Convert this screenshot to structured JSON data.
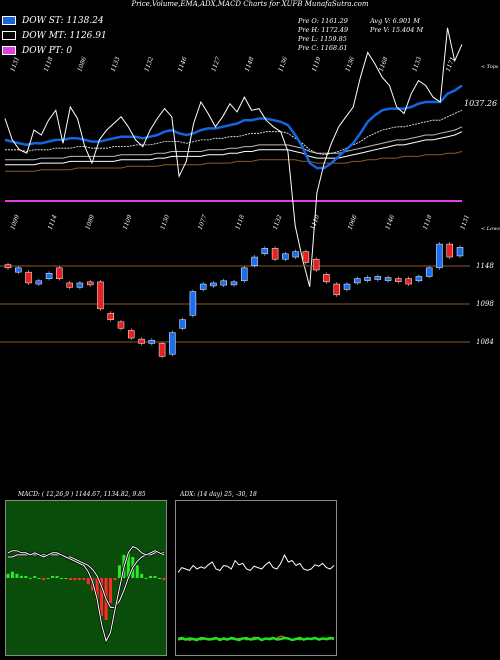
{
  "header": {
    "title": "Price,Volume,EMA,ADX,MACD Charts for XUFB MunafaSutra.com"
  },
  "legend": [
    {
      "label": "DOW ST: 1138.24",
      "color": "#1565e0"
    },
    {
      "label": "DOW MT: 1126.91",
      "color": "#000000"
    },
    {
      "label": "DOW PT: 0",
      "color": "#e040e0"
    }
  ],
  "info": {
    "open": "Pre  O: 1161.29",
    "high": "Pre  H: 1172.49",
    "low": "Pre  L: 1159.85",
    "close": "Pre  C: 1168.61",
    "avg_vol": "Avg V: 6.901  M",
    "vol": "Pre  V: 15.404  M"
  },
  "chart_data": [
    {
      "type": "line",
      "name": "price-ema-panel",
      "top_right_label": "< Tops",
      "bottom_right_label": "< Lows",
      "ema_value_label": "1037.26",
      "top_labels": [
        "1131",
        "1118",
        "1086",
        "1133",
        "1132",
        "1146",
        "1127",
        "1148",
        "1136",
        "1119",
        "1136",
        "1168",
        "1133",
        "1171"
      ],
      "low_labels": [
        "1099",
        "1114",
        "1089",
        "1109",
        "1130",
        "1077",
        "1118",
        "1132",
        "1110",
        "1066",
        "1146",
        "1118",
        "1131"
      ],
      "close_series": [
        1125,
        1112,
        1106,
        1104,
        1118,
        1115,
        1124,
        1130,
        1110,
        1132,
        1125,
        1108,
        1098,
        1112,
        1118,
        1122,
        1126,
        1120,
        1112,
        1108,
        1118,
        1125,
        1131,
        1126,
        1090,
        1099,
        1122,
        1135,
        1128,
        1120,
        1126,
        1134,
        1129,
        1138,
        1130,
        1131,
        1124,
        1120,
        1117,
        1105,
        1060,
        1040,
        1023,
        1080,
        1098,
        1110,
        1120,
        1126,
        1132,
        1150,
        1165,
        1158,
        1150,
        1145,
        1132,
        1128,
        1140,
        1148,
        1145,
        1138,
        1135,
        1180,
        1160,
        1170
      ],
      "ema_fast": [
        1112,
        1111,
        1110,
        1109,
        1110,
        1110,
        1111,
        1112,
        1112,
        1113,
        1113,
        1112,
        1111,
        1111,
        1112,
        1113,
        1114,
        1114,
        1114,
        1113,
        1114,
        1115,
        1117,
        1118,
        1116,
        1115,
        1116,
        1118,
        1119,
        1119,
        1120,
        1121,
        1122,
        1124,
        1124,
        1125,
        1125,
        1124,
        1123,
        1121,
        1115,
        1108,
        1098,
        1095,
        1095,
        1098,
        1102,
        1106,
        1110,
        1116,
        1123,
        1127,
        1130,
        1131,
        1131,
        1131,
        1132,
        1134,
        1135,
        1135,
        1135,
        1140,
        1142,
        1145
      ],
      "ema_mid": [
        1106,
        1106,
        1106,
        1105,
        1106,
        1106,
        1106,
        1107,
        1107,
        1107,
        1108,
        1108,
        1107,
        1107,
        1107,
        1108,
        1108,
        1108,
        1109,
        1109,
        1109,
        1110,
        1111,
        1111,
        1111,
        1110,
        1111,
        1112,
        1112,
        1113,
        1113,
        1114,
        1114,
        1115,
        1116,
        1116,
        1117,
        1117,
        1117,
        1116,
        1113,
        1110,
        1106,
        1104,
        1103,
        1104,
        1105,
        1107,
        1109,
        1111,
        1114,
        1116,
        1118,
        1119,
        1120,
        1120,
        1121,
        1122,
        1123,
        1124,
        1124,
        1126,
        1128,
        1130
      ],
      "ema_slow": [
        1100,
        1100,
        1100,
        1100,
        1100,
        1101,
        1101,
        1101,
        1101,
        1102,
        1102,
        1102,
        1102,
        1102,
        1102,
        1102,
        1103,
        1103,
        1103,
        1103,
        1103,
        1104,
        1104,
        1105,
        1105,
        1105,
        1105,
        1105,
        1106,
        1106,
        1106,
        1107,
        1107,
        1108,
        1108,
        1109,
        1109,
        1109,
        1109,
        1109,
        1108,
        1107,
        1105,
        1104,
        1104,
        1104,
        1104,
        1105,
        1106,
        1107,
        1108,
        1109,
        1110,
        1111,
        1112,
        1112,
        1113,
        1114,
        1115,
        1115,
        1116,
        1117,
        1118,
        1120
      ],
      "ema_brown": [
        1093,
        1093,
        1093,
        1093,
        1093,
        1094,
        1094,
        1094,
        1094,
        1094,
        1095,
        1095,
        1095,
        1095,
        1095,
        1095,
        1095,
        1096,
        1096,
        1096,
        1096,
        1096,
        1097,
        1097,
        1097,
        1097,
        1097,
        1097,
        1098,
        1098,
        1098,
        1098,
        1099,
        1099,
        1099,
        1100,
        1100,
        1100,
        1100,
        1100,
        1100,
        1099,
        1099,
        1098,
        1098,
        1098,
        1098,
        1098,
        1099,
        1099,
        1100,
        1100,
        1101,
        1101,
        1101,
        1102,
        1102,
        1102,
        1103,
        1103,
        1103,
        1104,
        1104,
        1105
      ],
      "dow_pt_level": 1075
    },
    {
      "type": "candlestick",
      "name": "heikin-candles",
      "levels": [
        {
          "label": "1148",
          "value": 1148
        },
        {
          "label": "1098",
          "value": 1098
        },
        {
          "label": "1084",
          "value": 1084
        }
      ],
      "candles": [
        {
          "o": 1153,
          "c": 1150,
          "up": false
        },
        {
          "o": 1146,
          "c": 1150,
          "up": true
        },
        {
          "o": 1146,
          "c": 1136,
          "up": false
        },
        {
          "o": 1135,
          "c": 1138,
          "up": true
        },
        {
          "o": 1140,
          "c": 1145,
          "up": true
        },
        {
          "o": 1150,
          "c": 1140,
          "up": false
        },
        {
          "o": 1136,
          "c": 1132,
          "up": false
        },
        {
          "o": 1132,
          "c": 1136,
          "up": true
        },
        {
          "o": 1137,
          "c": 1135,
          "up": false
        },
        {
          "o": 1137,
          "c": 1112,
          "up": false
        },
        {
          "o": 1108,
          "c": 1102,
          "up": false
        },
        {
          "o": 1100,
          "c": 1094,
          "up": false
        },
        {
          "o": 1092,
          "c": 1085,
          "up": false
        },
        {
          "o": 1084,
          "c": 1080,
          "up": false
        },
        {
          "o": 1080,
          "c": 1083,
          "up": true
        },
        {
          "o": 1080,
          "c": 1068,
          "up": false
        },
        {
          "o": 1070,
          "c": 1090,
          "up": true
        },
        {
          "o": 1094,
          "c": 1102,
          "up": true
        },
        {
          "o": 1106,
          "c": 1128,
          "up": true
        },
        {
          "o": 1130,
          "c": 1135,
          "up": true
        },
        {
          "o": 1134,
          "c": 1136,
          "up": true
        },
        {
          "o": 1134,
          "c": 1138,
          "up": true
        },
        {
          "o": 1136,
          "c": 1137,
          "up": true
        },
        {
          "o": 1138,
          "c": 1150,
          "up": true
        },
        {
          "o": 1152,
          "c": 1160,
          "up": true
        },
        {
          "o": 1163,
          "c": 1168,
          "up": true
        },
        {
          "o": 1168,
          "c": 1158,
          "up": false
        },
        {
          "o": 1158,
          "c": 1163,
          "up": true
        },
        {
          "o": 1160,
          "c": 1165,
          "up": true
        },
        {
          "o": 1165,
          "c": 1155,
          "up": false
        },
        {
          "o": 1158,
          "c": 1148,
          "up": false
        },
        {
          "o": 1144,
          "c": 1137,
          "up": false
        },
        {
          "o": 1135,
          "c": 1125,
          "up": false
        },
        {
          "o": 1130,
          "c": 1135,
          "up": true
        },
        {
          "o": 1136,
          "c": 1140,
          "up": true
        },
        {
          "o": 1140,
          "c": 1141,
          "up": true
        },
        {
          "o": 1140,
          "c": 1142,
          "up": true
        },
        {
          "o": 1140,
          "c": 1141,
          "up": true
        },
        {
          "o": 1140,
          "c": 1139,
          "up": false
        },
        {
          "o": 1140,
          "c": 1135,
          "up": false
        },
        {
          "o": 1138,
          "c": 1142,
          "up": true
        },
        {
          "o": 1142,
          "c": 1150,
          "up": true
        },
        {
          "o": 1150,
          "c": 1172,
          "up": true
        },
        {
          "o": 1172,
          "c": 1160,
          "up": false
        },
        {
          "o": 1161,
          "c": 1169,
          "up": true
        }
      ]
    },
    {
      "type": "line",
      "name": "macd-panel",
      "label": "MACD: ( 12,26,9 ) 1144.67,  1134.82,  9.85",
      "macd": [
        12,
        13,
        13,
        12,
        12,
        11,
        12,
        11,
        10,
        11,
        12,
        12,
        11,
        10,
        9,
        8,
        7,
        6,
        3,
        -2,
        -10,
        -22,
        -30,
        -26,
        -15,
        -5,
        5,
        12,
        15,
        14,
        12,
        11,
        12,
        13,
        12,
        11
      ],
      "signal": [
        10,
        10,
        11,
        11,
        11,
        11,
        11,
        11,
        11,
        11,
        11,
        11,
        11,
        10,
        10,
        9,
        8,
        7,
        6,
        4,
        1,
        -4,
        -10,
        -14,
        -14,
        -11,
        -6,
        0,
        5,
        8,
        10,
        11,
        11,
        12,
        12,
        12
      ],
      "hist": [
        2,
        3,
        2,
        1,
        1,
        0,
        1,
        0,
        -1,
        0,
        1,
        1,
        0,
        0,
        -1,
        -1,
        -1,
        -1,
        -3,
        -6,
        -11,
        -18,
        -20,
        -12,
        -1,
        6,
        11,
        12,
        10,
        6,
        2,
        0,
        1,
        1,
        0,
        -1
      ]
    },
    {
      "type": "line",
      "name": "adx-panel",
      "label": "ADX: (14 day) 25, -30, 18",
      "adx": [
        25,
        32,
        30,
        28,
        35,
        30,
        33,
        31,
        36,
        40,
        30,
        28,
        35,
        34,
        30,
        42,
        36,
        38,
        30,
        28,
        34,
        32,
        30,
        36,
        40,
        32,
        30,
        38,
        50,
        40,
        42,
        35,
        38,
        30,
        28,
        30,
        36,
        34,
        38,
        32,
        30,
        35
      ],
      "plus_di": [
        10,
        12,
        9,
        11,
        10,
        8,
        12,
        11,
        9,
        10,
        12,
        8,
        11,
        9,
        12,
        10,
        8,
        11,
        12,
        9,
        10,
        12,
        8,
        11,
        10,
        12,
        9,
        10,
        12,
        11,
        8,
        10,
        12,
        9,
        11,
        10,
        12,
        9,
        11,
        10,
        12,
        11
      ],
      "minus_di": [
        8,
        9,
        10,
        7,
        9,
        11,
        8,
        10,
        9,
        8,
        10,
        11,
        9,
        8,
        10,
        9,
        11,
        12,
        8,
        10,
        14,
        12,
        9,
        11,
        8,
        10,
        12,
        16,
        14,
        10,
        9,
        11,
        8,
        10,
        9,
        12,
        10,
        9,
        11,
        8,
        10,
        9
      ]
    }
  ]
}
